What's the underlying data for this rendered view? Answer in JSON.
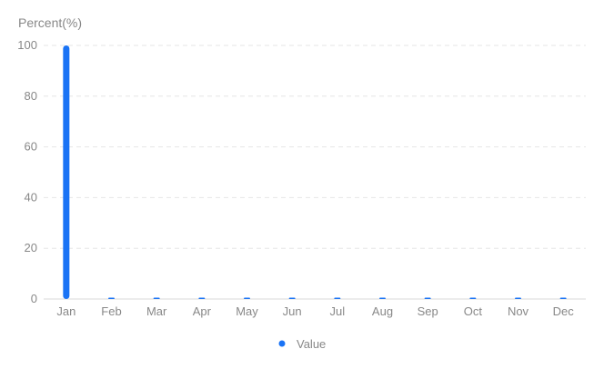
{
  "chart_data": {
    "type": "bar",
    "ylabel": "Percent(%)",
    "ylim": [
      0,
      100
    ],
    "yticks": [
      0,
      20,
      40,
      60,
      80,
      100
    ],
    "categories": [
      "Jan",
      "Feb",
      "Mar",
      "Apr",
      "May",
      "Jun",
      "Jul",
      "Aug",
      "Sep",
      "Oct",
      "Nov",
      "Dec"
    ],
    "series": [
      {
        "name": "Value",
        "values": [
          100,
          0,
          0,
          0,
          0,
          0,
          0,
          0,
          0,
          0,
          0,
          0
        ]
      }
    ],
    "grid": true,
    "legend_position": "bottom-center"
  },
  "colors": {
    "series": "#1a73f5",
    "grid": "#e6e6e6",
    "axis": "#d9d9d9",
    "text": "#888888"
  }
}
